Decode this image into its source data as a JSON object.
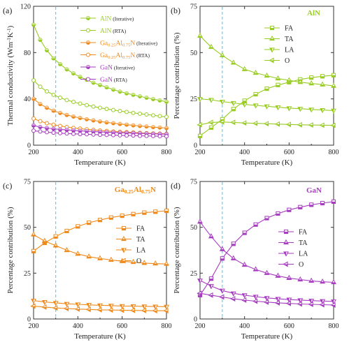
{
  "chart_data": [
    {
      "panel_label": "(a)",
      "type": "line",
      "ylabel": "Thermal conductivity (Wm⁻¹K⁻¹)",
      "xlabel": "Temperature (K)",
      "xlim": [
        200,
        800
      ],
      "ylim": [
        0,
        120
      ],
      "xticks": [
        "200",
        "400",
        "600",
        "800"
      ],
      "yticks": [
        "0",
        "40",
        "80",
        "120"
      ],
      "reference_line": {
        "x": 300,
        "style": "dashed",
        "color": "#5bc8f0"
      },
      "legend_position": "top-right",
      "x": [
        200,
        230,
        260,
        290,
        320,
        350,
        380,
        410,
        440,
        470,
        500,
        530,
        560,
        590,
        620,
        650,
        680,
        710,
        740,
        770,
        800
      ],
      "series": [
        {
          "name": "AlN",
          "name_suffix": "(Iterative)",
          "color": "#99cc22",
          "marker": "circle-filled",
          "values": [
            104,
            91,
            82,
            75,
            70,
            65.5,
            62,
            59,
            56.5,
            54,
            52,
            50,
            48,
            46.3,
            44.8,
            43.5,
            42.2,
            41,
            39.8,
            38.7,
            37.5
          ]
        },
        {
          "name": "AlN",
          "name_suffix": "(RTA)",
          "color": "#99cc22",
          "marker": "circle-open",
          "values": [
            56,
            50.5,
            46.5,
            43.5,
            41,
            39,
            37.4,
            35.9,
            34.6,
            33.4,
            32.3,
            31.3,
            30.4,
            29.5,
            28.7,
            27.9,
            27.2,
            26.5,
            25.8,
            25.1,
            24.5
          ]
        },
        {
          "name": "Ga0.25Al0.75N",
          "name_suffix": "(Iterative)",
          "color": "#ee8a1c",
          "marker": "circle-filled",
          "values": [
            40,
            35.5,
            32.3,
            29.8,
            27.8,
            26.1,
            24.7,
            23.5,
            22.4,
            21.4,
            20.5,
            19.7,
            19,
            18.3,
            17.7,
            17.1,
            16.6,
            16.1,
            15.6,
            15.2,
            14.8
          ]
        },
        {
          "name": "Ga0.25Al0.75N",
          "name_suffix": "(RTA)",
          "color": "#ee8a1c",
          "marker": "circle-open",
          "values": [
            23,
            20.7,
            19,
            17.7,
            16.6,
            15.7,
            14.9,
            14.3,
            13.7,
            13.2,
            12.7,
            12.3,
            11.9,
            11.6,
            11.3,
            11,
            10.7,
            10.4,
            10.2,
            10,
            9.8
          ]
        },
        {
          "name": "GaN",
          "name_suffix": "(Iterative)",
          "color": "#a63cbf",
          "marker": "circle-filled",
          "values": [
            17,
            15.7,
            14.8,
            14.2,
            13.6,
            13.2,
            12.8,
            12.4,
            12.1,
            11.8,
            11.5,
            11.2,
            11,
            10.8,
            10.6,
            10.4,
            10.2,
            10,
            9.8,
            9.7,
            9.5
          ]
        },
        {
          "name": "GaN",
          "name_suffix": "(RTA)",
          "color": "#a63cbf",
          "marker": "circle-open",
          "values": [
            12.5,
            11.8,
            11.2,
            10.8,
            10.4,
            10.1,
            9.8,
            9.6,
            9.4,
            9.2,
            9,
            8.8,
            8.7,
            8.5,
            8.4,
            8.3,
            8.1,
            8,
            7.9,
            7.8,
            7.7
          ]
        }
      ]
    },
    {
      "panel_label": "(b)",
      "type": "line",
      "title": "AlN",
      "ylabel": "Percentage contribution (%)",
      "xlabel": "Temperature (K)",
      "xlim": [
        200,
        800
      ],
      "ylim": [
        0,
        75
      ],
      "xticks": [
        "200",
        "400",
        "600",
        "800"
      ],
      "yticks": [
        "0",
        "25",
        "50",
        "75"
      ],
      "reference_line": {
        "x": 300,
        "style": "dashed",
        "color": "#5bc8f0"
      },
      "legend_position": "upper-right",
      "color": "#99cc22",
      "x": [
        200,
        250,
        300,
        350,
        400,
        450,
        500,
        550,
        600,
        650,
        700,
        750,
        800
      ],
      "series": [
        {
          "name": "FA",
          "marker": "square",
          "values": [
            5,
            9.5,
            14,
            19.5,
            24,
            27.5,
            30.5,
            32.5,
            34,
            35.5,
            36.5,
            37.2,
            37.8
          ]
        },
        {
          "name": "TA",
          "marker": "triangle-up",
          "values": [
            59,
            53,
            48.5,
            44.5,
            41,
            39,
            37.5,
            36,
            35,
            34,
            33.3,
            32.7,
            32
          ]
        },
        {
          "name": "LA",
          "marker": "triangle-down",
          "values": [
            25,
            24.5,
            23.5,
            22.8,
            22,
            21.5,
            21,
            20.5,
            20,
            19.7,
            19.3,
            19,
            18.7
          ]
        },
        {
          "name": "O",
          "marker": "triangle-left",
          "values": [
            11,
            12.3,
            12.5,
            12.3,
            12,
            11.8,
            11.6,
            11.4,
            11.2,
            11,
            10.9,
            10.8,
            10.7
          ]
        }
      ]
    },
    {
      "panel_label": "(c)",
      "type": "line",
      "title": "Ga0.25Al0.75N",
      "ylabel": "Percentage contribution (%)",
      "xlabel": "Temperature (K)",
      "xlim": [
        200,
        800
      ],
      "ylim": [
        0,
        75
      ],
      "xticks": [
        "200",
        "400",
        "600",
        "800"
      ],
      "yticks": [
        "0",
        "25",
        "50",
        "75"
      ],
      "reference_line": {
        "x": 300,
        "style": "dashed",
        "color": "#5bc8f0"
      },
      "legend_position": "center-right",
      "color": "#ee8a1c",
      "x": [
        200,
        250,
        300,
        350,
        400,
        450,
        500,
        550,
        600,
        650,
        700,
        750,
        800
      ],
      "series": [
        {
          "name": "FA",
          "marker": "square",
          "values": [
            37,
            41.5,
            45,
            48,
            50.5,
            52.5,
            54,
            55.3,
            56.3,
            57.2,
            58,
            58.5,
            59
          ]
        },
        {
          "name": "TA",
          "marker": "triangle-up",
          "values": [
            46,
            42.5,
            40,
            37.5,
            35.5,
            34,
            33,
            32.2,
            31.5,
            31,
            30.5,
            30.2,
            30
          ]
        },
        {
          "name": "LA",
          "marker": "triangle-down",
          "values": [
            10,
            9.3,
            8.8,
            8.3,
            8,
            7.7,
            7.5,
            7.3,
            7.1,
            7,
            6.9,
            6.8,
            6.7
          ]
        },
        {
          "name": "O",
          "marker": "triangle-left",
          "values": [
            7,
            6.5,
            6,
            5.7,
            5.4,
            5.2,
            5,
            4.9,
            4.8,
            4.7,
            4.6,
            4.5,
            4.5
          ]
        }
      ]
    },
    {
      "panel_label": "(d)",
      "type": "line",
      "title": "GaN",
      "ylabel": "Percentage contribution (%)",
      "xlabel": "Temperature (K)",
      "xlim": [
        200,
        800
      ],
      "ylim": [
        0,
        75
      ],
      "xticks": [
        "200",
        "400",
        "600",
        "800"
      ],
      "yticks": [
        "0",
        "25",
        "50",
        "75"
      ],
      "reference_line": {
        "x": 300,
        "style": "dashed",
        "color": "#5bc8f0"
      },
      "legend_position": "center-right",
      "color": "#a63cbf",
      "x": [
        200,
        250,
        300,
        350,
        400,
        450,
        500,
        550,
        600,
        650,
        700,
        750,
        800
      ],
      "series": [
        {
          "name": "FA",
          "marker": "square",
          "values": [
            13,
            22,
            33,
            41,
            47,
            51.5,
            55,
            57.5,
            59.5,
            61,
            62.3,
            63.2,
            64
          ]
        },
        {
          "name": "TA",
          "marker": "triangle-up",
          "values": [
            53,
            45,
            38,
            33,
            29.5,
            27,
            25,
            23.5,
            22.3,
            21.5,
            20.8,
            20.3,
            20
          ]
        },
        {
          "name": "LA",
          "marker": "triangle-down",
          "values": [
            21,
            18,
            15.5,
            14,
            13,
            12.2,
            11.5,
            11,
            10.6,
            10.3,
            10,
            9.8,
            9.6
          ]
        },
        {
          "name": "O",
          "marker": "triangle-left",
          "values": [
            14,
            13,
            12,
            11,
            10.3,
            9.7,
            9.2,
            8.8,
            8.5,
            8.2,
            8,
            7.8,
            7.6
          ]
        }
      ]
    }
  ]
}
